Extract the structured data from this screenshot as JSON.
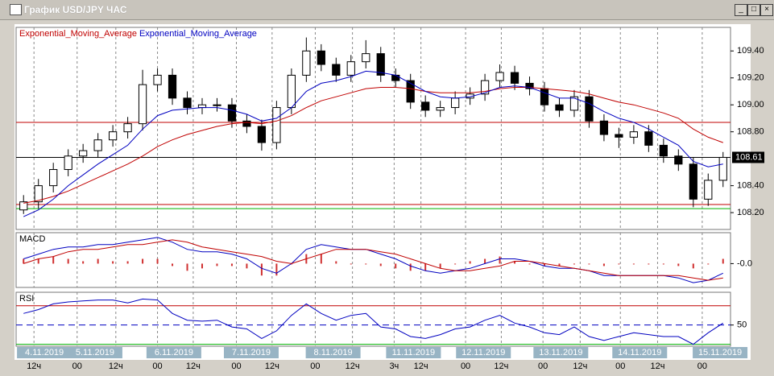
{
  "window": {
    "title": "График USD/JPY ЧАС"
  },
  "chart_data": [
    {
      "type": "candlestick",
      "open": [
        108.22,
        108.28,
        108.4,
        108.52,
        108.62,
        108.66,
        108.74,
        108.8,
        108.86,
        109.15,
        109.22,
        109.05,
        108.98,
        109.0,
        109.0,
        108.88,
        108.84,
        108.72,
        108.98,
        109.22,
        109.4,
        109.3,
        109.22,
        109.32,
        109.38,
        109.22,
        109.18,
        109.02,
        108.96,
        108.98,
        109.05,
        109.08,
        109.18,
        109.24,
        109.16,
        109.12,
        109.0,
        108.96,
        109.06,
        108.88,
        108.78,
        108.76,
        108.8,
        108.7,
        108.62,
        108.56,
        108.3,
        108.44
      ],
      "high": [
        108.33,
        108.45,
        108.57,
        108.67,
        108.71,
        108.79,
        108.85,
        108.91,
        109.26,
        109.27,
        109.27,
        109.1,
        109.05,
        109.05,
        109.05,
        108.93,
        108.89,
        109.03,
        109.27,
        109.5,
        109.45,
        109.35,
        109.37,
        109.48,
        109.43,
        109.27,
        109.23,
        109.07,
        109.03,
        109.1,
        109.13,
        109.23,
        109.3,
        109.29,
        109.21,
        109.17,
        109.05,
        109.11,
        109.11,
        108.93,
        108.83,
        108.85,
        108.85,
        108.75,
        108.67,
        108.61,
        108.49,
        108.65
      ],
      "low": [
        108.19,
        108.23,
        108.35,
        108.47,
        108.57,
        108.61,
        108.69,
        108.75,
        108.81,
        109.1,
        109.0,
        108.93,
        108.93,
        108.95,
        108.83,
        108.79,
        108.66,
        108.67,
        108.93,
        109.17,
        109.25,
        109.17,
        109.17,
        109.27,
        109.17,
        109.13,
        108.97,
        108.91,
        108.91,
        108.93,
        109.0,
        109.03,
        109.13,
        109.11,
        109.07,
        108.95,
        108.91,
        108.91,
        108.83,
        108.73,
        108.68,
        108.71,
        108.65,
        108.57,
        108.51,
        108.24,
        108.25,
        108.39
      ],
      "close": [
        108.28,
        108.4,
        108.52,
        108.62,
        108.66,
        108.74,
        108.8,
        108.86,
        109.15,
        109.22,
        109.05,
        108.98,
        109.0,
        109.0,
        108.88,
        108.84,
        108.72,
        108.98,
        109.22,
        109.4,
        109.3,
        109.22,
        109.32,
        109.38,
        109.22,
        109.18,
        109.02,
        108.96,
        108.98,
        109.05,
        109.08,
        109.18,
        109.24,
        109.16,
        109.12,
        109.0,
        108.96,
        109.06,
        108.88,
        108.78,
        108.76,
        108.8,
        108.7,
        108.62,
        108.56,
        108.3,
        108.44,
        108.61
      ],
      "series": [
        {
          "name": "Exponential_Moving_Average",
          "color": "#c00000",
          "values": [
            108.27,
            108.29,
            108.32,
            108.36,
            108.41,
            108.46,
            108.51,
            108.56,
            108.62,
            108.69,
            108.74,
            108.78,
            108.81,
            108.84,
            108.86,
            108.87,
            108.86,
            108.88,
            108.92,
            108.98,
            109.03,
            109.06,
            109.09,
            109.12,
            109.13,
            109.13,
            109.12,
            109.1,
            109.09,
            109.09,
            109.09,
            109.1,
            109.12,
            109.13,
            109.13,
            109.12,
            109.11,
            109.1,
            109.08,
            109.05,
            109.02,
            109.0,
            108.97,
            108.94,
            108.9,
            108.82,
            108.76,
            108.72
          ]
        },
        {
          "name": "Exponential_Moving_Average",
          "color": "#0000c0",
          "values": [
            108.17,
            108.22,
            108.3,
            108.4,
            108.48,
            108.56,
            108.63,
            108.7,
            108.82,
            108.92,
            108.96,
            108.97,
            108.98,
            108.98,
            108.96,
            108.93,
            108.88,
            108.9,
            108.98,
            109.1,
            109.16,
            109.18,
            109.21,
            109.25,
            109.24,
            109.22,
            109.16,
            109.1,
            109.06,
            109.05,
            109.06,
            109.09,
            109.13,
            109.14,
            109.13,
            109.09,
            109.05,
            109.05,
            109.01,
            108.95,
            108.9,
            108.87,
            108.82,
            108.76,
            108.7,
            108.58,
            108.54,
            108.56
          ]
        }
      ],
      "levels": [
        {
          "value": 108.87,
          "color": "#c00000"
        },
        {
          "value": 108.61,
          "color": "#000000"
        },
        {
          "value": 108.26,
          "color": "#c00000"
        },
        {
          "value": 108.23,
          "color": "#00b000"
        }
      ],
      "last_price": 108.61,
      "ylim": [
        108.075,
        109.575
      ],
      "yticks": [
        {
          "value": 108.2,
          "label": "108.20"
        },
        {
          "value": 108.4,
          "label": "108.40"
        },
        {
          "value": 108.8,
          "label": "108.80"
        },
        {
          "value": 109.0,
          "label": "109.00"
        },
        {
          "value": 109.2,
          "label": "109.20"
        },
        {
          "value": 109.4,
          "label": "109.40"
        }
      ],
      "xlim": [
        0,
        48
      ],
      "xticks": [
        {
          "value": 1.2,
          "label": "12ч"
        },
        {
          "value": 4.1,
          "label": "00"
        },
        {
          "value": 6.7,
          "label": "12ч"
        },
        {
          "value": 9.5,
          "label": "00"
        },
        {
          "value": 11.9,
          "label": "12ч"
        },
        {
          "value": 14.8,
          "label": "00"
        },
        {
          "value": 17.2,
          "label": "12ч"
        },
        {
          "value": 20.1,
          "label": "00"
        },
        {
          "value": 22.6,
          "label": "12ч"
        },
        {
          "value": 25.4,
          "label": "3ч"
        },
        {
          "value": 27.2,
          "label": "12ч"
        },
        {
          "value": 30.2,
          "label": "00"
        },
        {
          "value": 32.6,
          "label": "12ч"
        },
        {
          "value": 35.4,
          "label": "00"
        },
        {
          "value": 37.9,
          "label": "12ч"
        },
        {
          "value": 40.6,
          "label": "00"
        },
        {
          "value": 43.1,
          "label": "12ч"
        },
        {
          "value": 46.1,
          "label": "00"
        }
      ],
      "date_labels": [
        {
          "value": 1.9,
          "label": "4.11.2019"
        },
        {
          "value": 5.3,
          "label": "5.11.2019"
        },
        {
          "value": 10.6,
          "label": "6.11.2019"
        },
        {
          "value": 15.8,
          "label": "7.11.2019"
        },
        {
          "value": 21.3,
          "label": "8.11.2019"
        },
        {
          "value": 26.7,
          "label": "11.11.2019"
        },
        {
          "value": 31.4,
          "label": "12.11.2019"
        },
        {
          "value": 36.6,
          "label": "13.11.2019"
        },
        {
          "value": 41.9,
          "label": "14.11.2019"
        },
        {
          "value": 47.3,
          "label": "15.11.2019"
        }
      ]
    },
    {
      "type": "macd",
      "title": "MACD",
      "series": [
        {
          "color": "#0000c0",
          "values": [
            0.02,
            0.04,
            0.06,
            0.07,
            0.07,
            0.08,
            0.08,
            0.09,
            0.1,
            0.11,
            0.09,
            0.06,
            0.05,
            0.05,
            0.04,
            0.02,
            -0.02,
            -0.04,
            0.0,
            0.06,
            0.08,
            0.07,
            0.06,
            0.06,
            0.04,
            0.02,
            -0.01,
            -0.03,
            -0.04,
            -0.03,
            -0.02,
            0.0,
            0.02,
            0.02,
            0.01,
            -0.01,
            -0.02,
            -0.02,
            -0.03,
            -0.05,
            -0.05,
            -0.05,
            -0.05,
            -0.05,
            -0.06,
            -0.08,
            -0.07,
            -0.04
          ]
        },
        {
          "color": "#c00000",
          "values": [
            0.0,
            0.02,
            0.03,
            0.05,
            0.06,
            0.06,
            0.07,
            0.08,
            0.08,
            0.09,
            0.1,
            0.09,
            0.07,
            0.06,
            0.05,
            0.04,
            0.03,
            0.01,
            0.0,
            0.02,
            0.04,
            0.06,
            0.06,
            0.06,
            0.05,
            0.04,
            0.02,
            0.0,
            -0.02,
            -0.03,
            -0.03,
            -0.02,
            -0.01,
            0.01,
            0.01,
            0.0,
            -0.01,
            -0.02,
            -0.03,
            -0.04,
            -0.05,
            -0.05,
            -0.05,
            -0.05,
            -0.05,
            -0.06,
            -0.07,
            -0.06
          ]
        }
      ],
      "histogram": {
        "color": "#d03030",
        "values": [
          0.02,
          0.02,
          0.03,
          0.02,
          0.01,
          0.02,
          0.01,
          0.01,
          0.02,
          0.02,
          -0.01,
          -0.03,
          -0.02,
          -0.01,
          -0.01,
          -0.02,
          -0.05,
          -0.05,
          0.0,
          0.04,
          0.04,
          0.01,
          0.0,
          0.0,
          -0.01,
          -0.02,
          -0.03,
          -0.03,
          -0.02,
          0.0,
          0.01,
          0.02,
          0.03,
          0.01,
          0.0,
          -0.01,
          -0.01,
          0.0,
          0.0,
          -0.01,
          0.0,
          0.0,
          0.0,
          0.0,
          -0.01,
          -0.02,
          0.0,
          0.02
        ]
      },
      "ylim": [
        -0.1,
        0.13
      ],
      "yticks": [
        {
          "value": 0,
          "label": "-0.0"
        }
      ]
    },
    {
      "type": "rsi",
      "title": "RSI",
      "color": "#0000c0",
      "values": [
        62,
        66,
        72,
        74,
        75,
        76,
        76,
        73,
        77,
        76,
        62,
        55,
        54,
        55,
        48,
        46,
        36,
        44,
        60,
        72,
        62,
        55,
        60,
        62,
        48,
        46,
        38,
        36,
        40,
        46,
        48,
        55,
        60,
        52,
        48,
        42,
        40,
        48,
        38,
        34,
        38,
        42,
        40,
        38,
        38,
        30,
        42,
        52
      ],
      "levels": [
        {
          "value": 70,
          "color": "#c00000"
        },
        {
          "value": 30,
          "color": "#00b000"
        }
      ],
      "ylim": [
        28,
        84
      ],
      "yticks": [
        50
      ]
    }
  ]
}
